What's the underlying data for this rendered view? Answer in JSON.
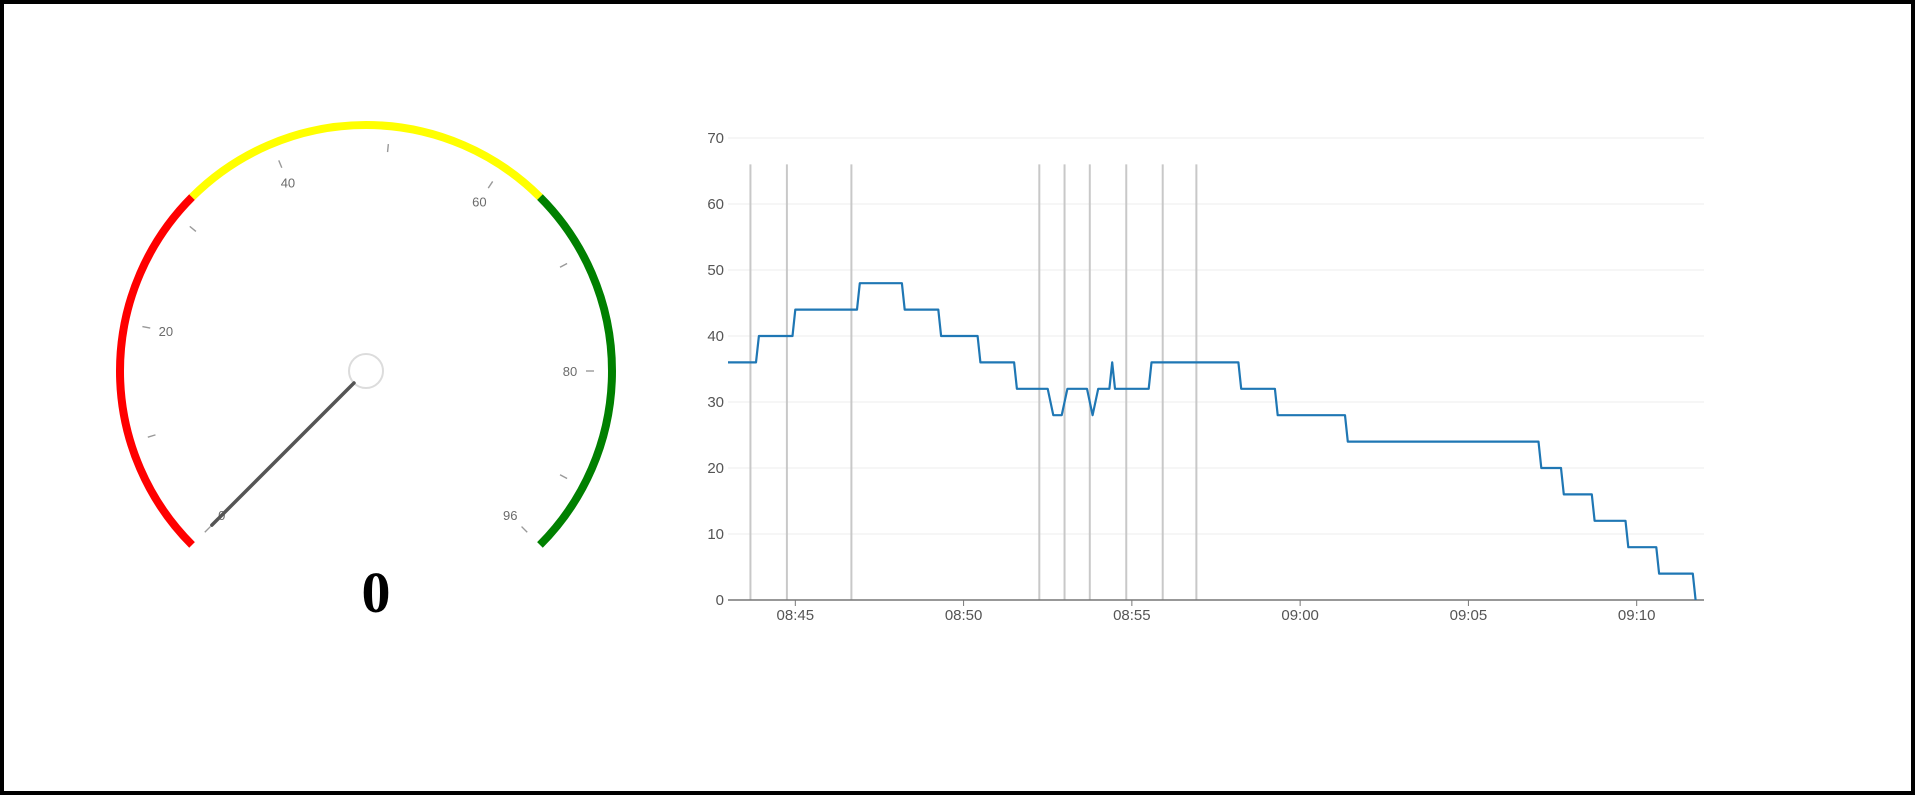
{
  "gauge": {
    "value": 0,
    "value_text": "0",
    "min": 0,
    "max": 96,
    "tick_labels": [
      "0",
      "20",
      "40",
      "60",
      "80",
      "96"
    ],
    "tick_values": [
      0,
      20,
      40,
      60,
      80,
      96
    ],
    "minor_tick_values": [
      10,
      30,
      50,
      70,
      90
    ],
    "bands": [
      {
        "from": 0,
        "to": 32,
        "color": "#ff0000"
      },
      {
        "from": 32,
        "to": 64,
        "color": "#ffff00"
      },
      {
        "from": 64,
        "to": 96,
        "color": "#008000"
      }
    ],
    "needle_color": "#555555"
  },
  "chart_data": {
    "type": "line",
    "x_start": "08:43",
    "x_end": "09:12",
    "ylim": [
      0,
      70
    ],
    "yticks": [
      0,
      10,
      20,
      30,
      40,
      50,
      60,
      70
    ],
    "xticks": [
      "08:45",
      "08:50",
      "08:55",
      "09:00",
      "09:05",
      "09:10"
    ],
    "grid": true,
    "line_color": "#1f77b4",
    "event_lines": [
      "08:43:40",
      "08:44:45",
      "08:46:40",
      "08:52:15",
      "08:53:00",
      "08:53:45",
      "08:54:50",
      "08:55:55",
      "08:56:55"
    ],
    "series": [
      {
        "points": [
          [
            "08:43:00",
            36
          ],
          [
            "08:43:50",
            36
          ],
          [
            "08:43:55",
            40
          ],
          [
            "08:44:55",
            40
          ],
          [
            "08:45:00",
            44
          ],
          [
            "08:46:50",
            44
          ],
          [
            "08:46:55",
            48
          ],
          [
            "08:48:10",
            48
          ],
          [
            "08:48:15",
            44
          ],
          [
            "08:49:15",
            44
          ],
          [
            "08:49:20",
            40
          ],
          [
            "08:50:25",
            40
          ],
          [
            "08:50:30",
            36
          ],
          [
            "08:51:30",
            36
          ],
          [
            "08:51:35",
            32
          ],
          [
            "08:52:30",
            32
          ],
          [
            "08:52:40",
            28
          ],
          [
            "08:52:55",
            28
          ],
          [
            "08:53:05",
            32
          ],
          [
            "08:53:40",
            32
          ],
          [
            "08:53:50",
            28
          ],
          [
            "08:54:00",
            32
          ],
          [
            "08:54:20",
            32
          ],
          [
            "08:54:25",
            36
          ],
          [
            "08:54:30",
            32
          ],
          [
            "08:55:30",
            32
          ],
          [
            "08:55:35",
            36
          ],
          [
            "08:58:10",
            36
          ],
          [
            "08:58:15",
            32
          ],
          [
            "08:59:15",
            32
          ],
          [
            "08:59:20",
            28
          ],
          [
            "09:01:20",
            28
          ],
          [
            "09:01:25",
            24
          ],
          [
            "09:07:05",
            24
          ],
          [
            "09:07:10",
            20
          ],
          [
            "09:07:45",
            20
          ],
          [
            "09:07:50",
            16
          ],
          [
            "09:08:40",
            16
          ],
          [
            "09:08:45",
            12
          ],
          [
            "09:09:40",
            12
          ],
          [
            "09:09:45",
            8
          ],
          [
            "09:10:35",
            8
          ],
          [
            "09:10:40",
            4
          ],
          [
            "09:11:40",
            4
          ],
          [
            "09:11:45",
            0
          ]
        ]
      }
    ]
  }
}
